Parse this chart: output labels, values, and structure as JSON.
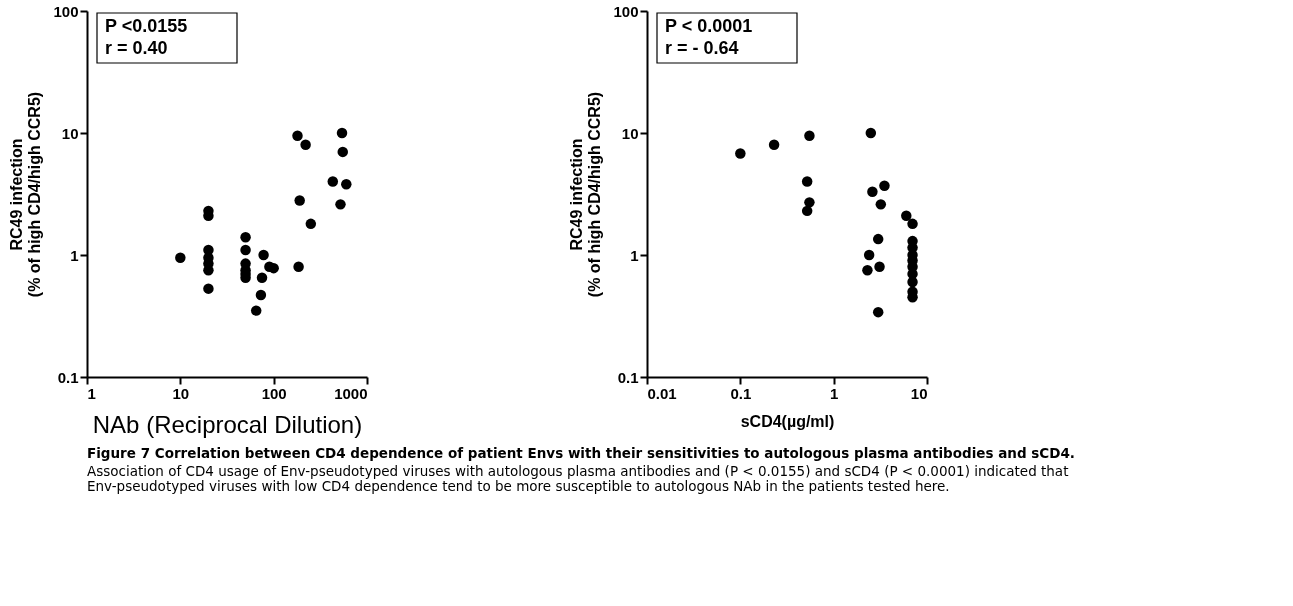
{
  "chart_data": [
    {
      "type": "scatter",
      "xlabel": "NAb (Reciprocal Dilution)",
      "ylabel": "RC49 infection\n(% of high CD4/high CCR5)",
      "log": "xy",
      "grid": false,
      "xlim": [
        1,
        1000
      ],
      "xticks": [
        1,
        10,
        100,
        1000
      ],
      "ylim": [
        0.1,
        100
      ],
      "yticks": [
        0.1,
        1,
        10,
        100
      ],
      "annotations": [
        "P <0.0155",
        "r = 0.40",
        "Figure 7 Correlation between CD4 dependence of patient Envs with their sensitivities to autologous plasma antibodies and sCD4.",
        "Association of CD4 usage of Env-pseudotyped viruses with autologous plasma antibodies and (P < 0.0155) and sCD4 (P < 0.0001) indicated that Env-pseudotyped viruses with low CD4 dependence tend to be more susceptible to autologous NAb in the patients tested here."
      ],
      "series": [
        {
          "color": "#000000",
          "x": [
            10,
            20,
            20,
            20,
            20,
            20,
            20,
            20,
            50,
            50,
            50,
            50,
            50,
            50,
            65,
            73,
            75,
            78,
            90,
            100,
            180,
            185,
            190,
            220,
            250,
            430,
            520,
            540,
            550,
            600
          ],
          "values": [
            0.95,
            2.3,
            2.1,
            1.1,
            0.95,
            0.85,
            0.75,
            0.53,
            1.4,
            1.1,
            0.85,
            0.75,
            0.7,
            0.65,
            0.35,
            0.47,
            0.65,
            1.0,
            0.8,
            0.78,
            9.5,
            0.8,
            2.8,
            8,
            1.8,
            4.0,
            2.6,
            10,
            7,
            3.8
          ]
        }
      ]
    },
    {
      "type": "scatter",
      "xlabel": "sCD4(µg/ml)",
      "ylabel": "RC49 infection\n(% of high CD4/high CCR5)",
      "log": "xy",
      "grid": false,
      "xlim": [
        0.01,
        10
      ],
      "xticks": [
        0.01,
        0.1,
        1,
        10
      ],
      "ylim": [
        0.1,
        100
      ],
      "yticks": [
        0.1,
        1,
        10,
        100
      ],
      "annotations": [
        "P < 0.0001",
        "r = - 0.64"
      ],
      "series": [
        {
          "color": "#000000",
          "x": [
            0.1,
            0.23,
            0.55,
            0.52,
            0.55,
            0.52,
            2.5,
            2.6,
            3.5,
            3.2,
            3.0,
            2.3,
            2.4,
            3.1,
            3.0,
            6,
            7,
            7,
            7,
            7,
            7,
            7,
            7,
            7,
            7,
            7
          ],
          "values": [
            6.8,
            8,
            9.5,
            4.0,
            2.7,
            2.3,
            10,
            3.3,
            3.7,
            2.6,
            1.35,
            0.75,
            1.0,
            0.8,
            0.34,
            2.1,
            1.8,
            1.3,
            1.15,
            1.0,
            0.9,
            0.8,
            0.7,
            0.6,
            0.5,
            0.45
          ]
        }
      ]
    }
  ]
}
